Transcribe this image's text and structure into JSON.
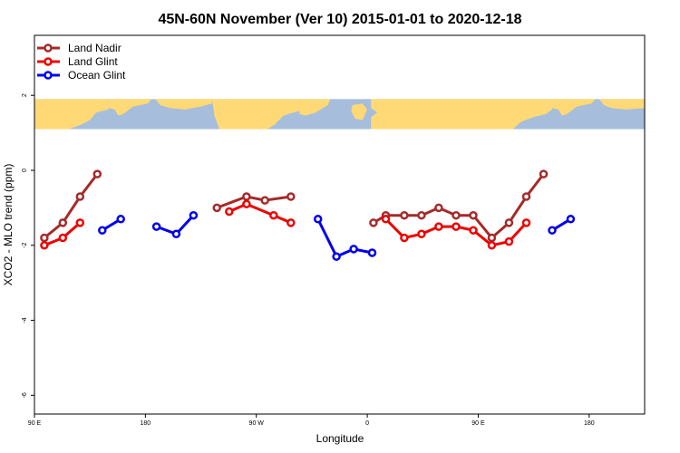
{
  "chart_data": {
    "type": "line",
    "title": "45N-60N November (Ver 10)   2015-01-01 to 2020-12-18",
    "xlabel": "Longitude",
    "ylabel": "XCO2 - MLO trend (ppm)",
    "xlim": [
      90,
      585
    ],
    "ylim": [
      -6.5,
      3.6
    ],
    "x_ticks": [
      {
        "value": 90,
        "label": "90 E"
      },
      {
        "value": 180,
        "label": "180"
      },
      {
        "value": 270,
        "label": "90 W"
      },
      {
        "value": 360,
        "label": "0"
      },
      {
        "value": 450,
        "label": "90 E"
      },
      {
        "value": 540,
        "label": "180"
      }
    ],
    "y_ticks": [
      {
        "value": 2,
        "label": "2"
      },
      {
        "value": 0,
        "label": "0"
      },
      {
        "value": -2,
        "label": "-2"
      },
      {
        "value": -4,
        "label": "-4"
      },
      {
        "value": -6,
        "label": "-6"
      }
    ],
    "map_band": {
      "y_top": 1.9,
      "y_bottom": 1.1,
      "ocean_color": "#a6bddb",
      "land_color": "#fed976"
    },
    "series": [
      {
        "name": "Land Nadir",
        "color": "#a52a2a",
        "segments": [
          [
            [
              98,
              -1.8
            ],
            [
              113,
              -1.4
            ],
            [
              127,
              -0.7
            ],
            [
              141,
              -0.1
            ]
          ],
          [
            [
              238,
              -1.0
            ],
            [
              262,
              -0.7
            ],
            [
              277,
              -0.8
            ],
            [
              298,
              -0.7
            ]
          ],
          [
            [
              365,
              -1.4
            ],
            [
              375,
              -1.2
            ],
            [
              390,
              -1.2
            ],
            [
              404,
              -1.2
            ],
            [
              418,
              -1.0
            ],
            [
              432,
              -1.2
            ],
            [
              446,
              -1.2
            ],
            [
              461,
              -1.8
            ],
            [
              475,
              -1.4
            ],
            [
              489,
              -0.7
            ],
            [
              503,
              -0.1
            ]
          ]
        ]
      },
      {
        "name": "Land Glint",
        "color": "#ee0000",
        "segments": [
          [
            [
              98,
              -2.0
            ],
            [
              113,
              -1.8
            ],
            [
              127,
              -1.4
            ]
          ],
          [
            [
              248,
              -1.1
            ],
            [
              262,
              -0.9
            ],
            [
              284,
              -1.2
            ],
            [
              298,
              -1.4
            ]
          ],
          [
            [
              375,
              -1.3
            ],
            [
              390,
              -1.8
            ],
            [
              404,
              -1.7
            ],
            [
              418,
              -1.5
            ],
            [
              432,
              -1.5
            ],
            [
              446,
              -1.6
            ],
            [
              461,
              -2.0
            ],
            [
              475,
              -1.9
            ],
            [
              489,
              -1.4
            ]
          ]
        ]
      },
      {
        "name": "Ocean Glint",
        "color": "#0000ee",
        "segments": [
          [
            [
              145,
              -1.6
            ],
            [
              160,
              -1.3
            ]
          ],
          [
            [
              189,
              -1.5
            ],
            [
              205,
              -1.7
            ],
            [
              219,
              -1.2
            ]
          ],
          [
            [
              320,
              -1.3
            ],
            [
              335,
              -2.3
            ],
            [
              349,
              -2.1
            ],
            [
              364,
              -2.2
            ]
          ],
          [
            [
              510,
              -1.6
            ],
            [
              525,
              -1.3
            ]
          ]
        ]
      }
    ],
    "legend_position": "top-left"
  }
}
